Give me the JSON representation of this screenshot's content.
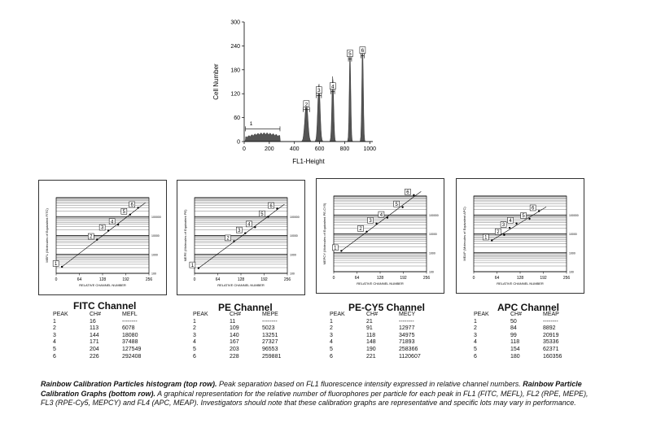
{
  "histogram": {
    "xlabel": "FL1-Height",
    "ylabel": "Cell Number",
    "x_ticks": [
      "0",
      "200",
      "400",
      "600",
      "800",
      "1000"
    ],
    "y_ticks": [
      "0",
      "60",
      "120",
      "180",
      "240",
      "300"
    ],
    "peak_labels": [
      "1",
      "2",
      "3",
      "4",
      "5",
      "6"
    ]
  },
  "chart_data": [
    {
      "type": "area",
      "title": "",
      "xlabel": "FL1-Height",
      "ylabel": "Cell Number",
      "xlim": [
        0,
        1024
      ],
      "ylim": [
        0,
        300
      ],
      "peaks": [
        {
          "label": "1",
          "x": [
            10,
            285
          ],
          "height": 22
        },
        {
          "label": "2",
          "x": [
            470,
            520
          ],
          "height": 100
        },
        {
          "label": "3",
          "x": [
            575,
            615
          ],
          "height": 145
        },
        {
          "label": "4",
          "x": [
            690,
            720
          ],
          "height": 165
        },
        {
          "label": "5",
          "x": [
            830,
            855
          ],
          "height": 230
        },
        {
          "label": "6",
          "x": [
            930,
            955
          ],
          "height": 245
        }
      ]
    },
    {
      "type": "scatter",
      "title": "FITC Channel",
      "xlabel": "RELATIVE CHANNEL NUMBER",
      "ylabel": "MEFL (Molecules of Equivalent FITC)",
      "xlim": [
        0,
        256
      ],
      "y_scale": "log",
      "ylim": [
        100,
        1000000
      ],
      "x": [
        16,
        113,
        144,
        171,
        204,
        226
      ],
      "y": [
        null,
        6078,
        18080,
        37488,
        127549,
        292408
      ]
    },
    {
      "type": "scatter",
      "title": "PE Channel",
      "xlabel": "RELATIVE CHANNEL NUMBER",
      "ylabel": "MEPE (Molecules of Equivalent PE)",
      "xlim": [
        0,
        256
      ],
      "y_scale": "log",
      "ylim": [
        100,
        1000000
      ],
      "x": [
        11,
        109,
        140,
        167,
        203,
        228
      ],
      "y": [
        null,
        5023,
        13251,
        27327,
        96553,
        259881
      ]
    },
    {
      "type": "scatter",
      "title": "PE-CY5 Channel",
      "xlabel": "RELATIVE CHANNEL NUMBER",
      "ylabel": "MEPCY (Molecules of Equivalent PE-CY5)",
      "xlim": [
        0,
        256
      ],
      "y_scale": "log",
      "ylim": [
        100,
        1000000
      ],
      "x": [
        21,
        91,
        118,
        148,
        190,
        221
      ],
      "y": [
        null,
        12977,
        34975,
        71893,
        258366,
        1120607
      ]
    },
    {
      "type": "scatter",
      "title": "APC Channel",
      "xlabel": "RELATIVE CHANNEL NUMBER",
      "ylabel": "MEAP (Molecules of Equivalent APC)",
      "xlim": [
        0,
        256
      ],
      "y_scale": "log",
      "ylim": [
        100,
        1000000
      ],
      "x": [
        50,
        84,
        99,
        118,
        154,
        180
      ],
      "y": [
        null,
        8892,
        20919,
        35336,
        62371,
        160356
      ]
    }
  ],
  "calib": {
    "x_ticks": [
      "0",
      "64",
      "128",
      "192",
      "256"
    ],
    "y_ticks": [
      "100",
      "1000",
      "10000",
      "100000"
    ],
    "xlabel": "RELATIVE CHANNEL NUMBER"
  },
  "tables": [
    {
      "title": "FITC Channel",
      "headers": [
        "PEAK",
        "CH#",
        "MEFL"
      ],
      "rows": [
        [
          "1",
          "16",
          "--------"
        ],
        [
          "2",
          "113",
          "6078"
        ],
        [
          "3",
          "144",
          "18080"
        ],
        [
          "4",
          "171",
          "37488"
        ],
        [
          "5",
          "204",
          "127549"
        ],
        [
          "6",
          "226",
          "292408"
        ]
      ]
    },
    {
      "title": "PE Channel",
      "headers": [
        "PEAK",
        "CH#",
        "MEPE"
      ],
      "rows": [
        [
          "1",
          "11",
          "--------"
        ],
        [
          "2",
          "109",
          "5023"
        ],
        [
          "3",
          "140",
          "13251"
        ],
        [
          "4",
          "167",
          "27327"
        ],
        [
          "5",
          "203",
          "96553"
        ],
        [
          "6",
          "228",
          "259881"
        ]
      ]
    },
    {
      "title": "PE-CY5 Channel",
      "headers": [
        "PEAK",
        "CH#",
        "MECY"
      ],
      "rows": [
        [
          "1",
          "21",
          "--------"
        ],
        [
          "2",
          "91",
          "12977"
        ],
        [
          "3",
          "118",
          "34975"
        ],
        [
          "4",
          "148",
          "71893"
        ],
        [
          "5",
          "190",
          "258366"
        ],
        [
          "6",
          "221",
          "1120607"
        ]
      ]
    },
    {
      "title": "APC Channel",
      "headers": [
        "PEAK",
        "CH#",
        "MEAP"
      ],
      "rows": [
        [
          "1",
          "50",
          "--------"
        ],
        [
          "2",
          "84",
          "8892"
        ],
        [
          "3",
          "99",
          "20919"
        ],
        [
          "4",
          "118",
          "35336"
        ],
        [
          "5",
          "154",
          "62371"
        ],
        [
          "6",
          "180",
          "160356"
        ]
      ]
    }
  ],
  "caption": {
    "bold1": "Rainbow Calibration Particles histogram (top row).",
    "text1": " Peak separation based on FL1 fluorescence intensity expressed in relative channel numbers. ",
    "bold2": "Rainbow Particle Calibration Graphs (bottom row).",
    "text2": " A graphical representation for the relative number of fluorophores per particle for each peak in FL1 (FITC, MEFL), FL2 (RPE, MEPE), FL3 (RPE-Cy5, MEPCY) and FL4 (APC, MEAP). Investigators should note that these calibration graphs are representative and specific lots may vary in performance."
  }
}
